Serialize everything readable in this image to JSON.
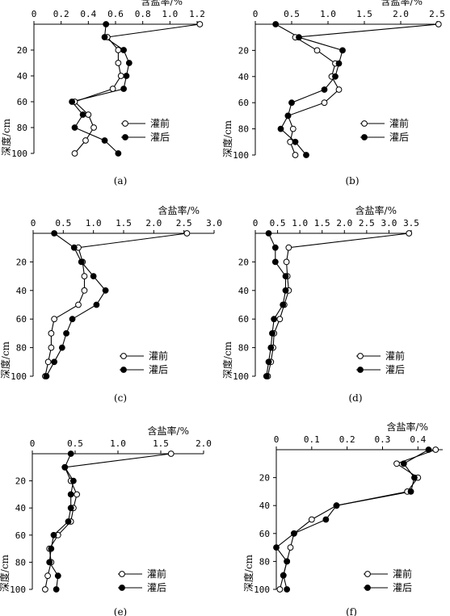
{
  "chart_data": [
    {
      "id": "a",
      "type": "line",
      "caption": "(a)",
      "xlabel": "含盐率/%",
      "ylabel": "深度/cm",
      "xlim": [
        0,
        1.2
      ],
      "ylim": [
        0,
        100
      ],
      "xticks": [
        0,
        0.2,
        0.4,
        0.6,
        0.8,
        1.0,
        1.2
      ],
      "xtick_labels": [
        "0",
        "0.2",
        "0.4",
        "0.6",
        "0.8",
        "1.0",
        "1.2"
      ],
      "yticks": [
        20,
        40,
        60,
        80,
        100
      ],
      "ytick_labels": [
        "20",
        "40",
        "60",
        "80",
        "100"
      ],
      "legend": [
        "灌前",
        "灌后"
      ],
      "series": [
        {
          "name": "灌前",
          "marker": "open",
          "x": [
            1.22,
            0.54,
            0.62,
            0.62,
            0.64,
            0.58,
            0.3,
            0.4,
            0.44,
            0.38,
            0.3
          ],
          "y": [
            0,
            10,
            20,
            30,
            40,
            50,
            60,
            70,
            80,
            90,
            100
          ]
        },
        {
          "name": "灌后",
          "marker": "filled",
          "x": [
            0.53,
            0.52,
            0.66,
            0.7,
            0.68,
            0.66,
            0.28,
            0.36,
            0.3,
            0.52,
            0.62
          ],
          "y": [
            0,
            10,
            20,
            30,
            40,
            50,
            60,
            70,
            80,
            90,
            100
          ]
        }
      ]
    },
    {
      "id": "b",
      "type": "line",
      "caption": "(b)",
      "xlabel": "含盐率/%",
      "ylabel": "深度/cm",
      "xlim": [
        0,
        2.5
      ],
      "ylim": [
        0,
        100
      ],
      "xticks": [
        0,
        0.5,
        1.0,
        1.5,
        2.0,
        2.5
      ],
      "xtick_labels": [
        "0",
        "0.5",
        "1.0",
        "1.5",
        "2.0",
        "2.5"
      ],
      "yticks": [
        20,
        40,
        60,
        80,
        100
      ],
      "ytick_labels": [
        "20",
        "40",
        "60",
        "80",
        "100"
      ],
      "legend": [
        "灌前",
        "灌后"
      ],
      "series": [
        {
          "name": "灌前",
          "marker": "open",
          "x": [
            2.52,
            0.55,
            0.85,
            1.1,
            1.05,
            1.15,
            0.95,
            0.45,
            0.52,
            0.48,
            0.55
          ],
          "y": [
            0,
            10,
            20,
            30,
            40,
            50,
            60,
            70,
            80,
            90,
            100
          ]
        },
        {
          "name": "灌后",
          "marker": "filled",
          "x": [
            0.28,
            0.6,
            1.2,
            1.15,
            1.1,
            0.95,
            0.5,
            0.45,
            0.35,
            0.55,
            0.7
          ],
          "y": [
            0,
            10,
            20,
            30,
            40,
            50,
            60,
            70,
            80,
            90,
            100
          ]
        }
      ]
    },
    {
      "id": "c",
      "type": "line",
      "caption": "(c)",
      "xlabel": "含盐率/%",
      "ylabel": "深度/cm",
      "xlim": [
        0,
        3.0
      ],
      "ylim": [
        0,
        100
      ],
      "xticks": [
        0,
        0.5,
        1.0,
        1.5,
        2.0,
        2.5,
        3.0
      ],
      "xtick_labels": [
        "0",
        "0.5",
        "1.0",
        "1.5",
        "2.0",
        "2.5",
        "3.0"
      ],
      "yticks": [
        20,
        40,
        60,
        80,
        100
      ],
      "ytick_labels": [
        "20",
        "40",
        "60",
        "80",
        "100"
      ],
      "legend": [
        "灌前",
        "灌后"
      ],
      "series": [
        {
          "name": "灌前",
          "marker": "open",
          "x": [
            2.55,
            0.75,
            0.82,
            0.85,
            0.85,
            0.75,
            0.35,
            0.3,
            0.3,
            0.25,
            0.2
          ],
          "y": [
            0,
            10,
            20,
            30,
            40,
            50,
            60,
            70,
            80,
            90,
            100
          ]
        },
        {
          "name": "灌后",
          "marker": "filled",
          "x": [
            0.35,
            0.68,
            0.8,
            1.0,
            1.2,
            1.05,
            0.65,
            0.55,
            0.48,
            0.35,
            0.22
          ],
          "y": [
            0,
            10,
            20,
            30,
            40,
            50,
            60,
            70,
            80,
            90,
            100
          ]
        }
      ]
    },
    {
      "id": "d",
      "type": "line",
      "caption": "(d)",
      "xlabel": "含盐率/%",
      "ylabel": "深度/cm",
      "xlim": [
        0,
        3.5
      ],
      "ylim": [
        0,
        100
      ],
      "xticks": [
        0,
        0.5,
        1.0,
        1.5,
        2.0,
        2.5,
        3.0,
        3.5
      ],
      "xtick_labels": [
        "0",
        "0.5",
        "1.0",
        "1.5",
        "2.0",
        "2.5",
        "3.0",
        "3.5"
      ],
      "yticks": [
        20,
        40,
        60,
        80,
        100
      ],
      "ytick_labels": [
        "20",
        "40",
        "60",
        "80",
        "100"
      ],
      "legend": [
        "灌前",
        "灌后"
      ],
      "series": [
        {
          "name": "灌前",
          "marker": "open",
          "x": [
            3.45,
            0.75,
            0.7,
            0.72,
            0.75,
            0.65,
            0.55,
            0.42,
            0.4,
            0.35,
            0.28
          ],
          "y": [
            0,
            10,
            20,
            30,
            40,
            50,
            60,
            70,
            80,
            90,
            100
          ]
        },
        {
          "name": "灌后",
          "marker": "filled",
          "x": [
            0.3,
            0.45,
            0.45,
            0.68,
            0.68,
            0.62,
            0.42,
            0.38,
            0.35,
            0.3,
            0.25
          ],
          "y": [
            0,
            10,
            20,
            30,
            40,
            50,
            60,
            70,
            80,
            90,
            100
          ]
        }
      ]
    },
    {
      "id": "e",
      "type": "line",
      "caption": "(e)",
      "xlabel": "含盐率/%",
      "ylabel": "深度/cm",
      "xlim": [
        0,
        2.0
      ],
      "ylim": [
        0,
        100
      ],
      "xticks": [
        0,
        0.5,
        1.0,
        1.5,
        2.0
      ],
      "xtick_labels": [
        "0",
        "0.5",
        "1.0",
        "1.5",
        "2.0"
      ],
      "yticks": [
        20,
        40,
        60,
        80,
        100
      ],
      "ytick_labels": [
        "20",
        "40",
        "60",
        "80",
        "100"
      ],
      "legend": [
        "灌前",
        "灌后"
      ],
      "series": [
        {
          "name": "灌前",
          "marker": "open",
          "x": [
            1.62,
            0.38,
            0.45,
            0.52,
            0.48,
            0.45,
            0.3,
            0.2,
            0.22,
            0.18,
            0.15
          ],
          "y": [
            0,
            10,
            20,
            30,
            40,
            50,
            60,
            70,
            80,
            90,
            100
          ]
        },
        {
          "name": "灌后",
          "marker": "filled",
          "x": [
            0.45,
            0.38,
            0.48,
            0.45,
            0.45,
            0.42,
            0.25,
            0.22,
            0.2,
            0.3,
            0.28
          ],
          "y": [
            0,
            10,
            20,
            30,
            40,
            50,
            60,
            70,
            80,
            90,
            100
          ]
        }
      ]
    },
    {
      "id": "f",
      "type": "line",
      "caption": "(f)",
      "xlabel": "含盐率/%",
      "ylabel": "深度/cm",
      "xlim": [
        0,
        0.47
      ],
      "ylim": [
        0,
        100
      ],
      "xticks": [
        0,
        0.1,
        0.2,
        0.3,
        0.4
      ],
      "xtick_labels": [
        "0",
        "0.1",
        "0.2",
        "0.3",
        "0.4"
      ],
      "yticks": [
        20,
        40,
        60,
        80,
        100
      ],
      "ytick_labels": [
        "20",
        "40",
        "60",
        "80",
        "100"
      ],
      "legend": [
        "灌前",
        "灌后"
      ],
      "series": [
        {
          "name": "灌前",
          "marker": "open",
          "x": [
            0.45,
            0.34,
            0.4,
            0.37,
            0.17,
            0.1,
            0.05,
            0.04,
            0.03,
            0.02,
            0.01
          ],
          "y": [
            0,
            10,
            20,
            30,
            40,
            50,
            60,
            70,
            80,
            90,
            100
          ]
        },
        {
          "name": "灌后",
          "marker": "filled",
          "x": [
            0.43,
            0.36,
            0.39,
            0.38,
            0.17,
            0.14,
            0.05,
            0.0,
            0.03,
            0.02,
            0.03
          ],
          "y": [
            0,
            10,
            20,
            30,
            40,
            50,
            60,
            70,
            80,
            90,
            100
          ]
        }
      ]
    }
  ]
}
